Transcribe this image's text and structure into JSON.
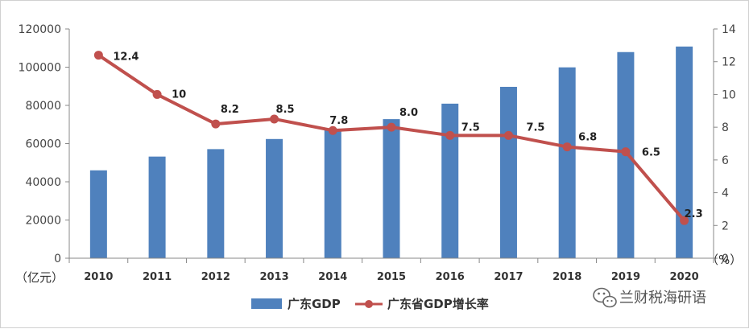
{
  "chart_data": {
    "type": "bar",
    "categories": [
      "2010",
      "2011",
      "2012",
      "2013",
      "2014",
      "2015",
      "2016",
      "2017",
      "2018",
      "2019",
      "2020"
    ],
    "series": [
      {
        "name": "广东GDP",
        "type": "bar",
        "axis": "left",
        "values": [
          46000,
          53200,
          57100,
          62400,
          67800,
          72800,
          80900,
          89700,
          99900,
          107900,
          110800
        ]
      },
      {
        "name": "广东省GDP增长率",
        "type": "line",
        "axis": "right",
        "values": [
          12.4,
          10,
          8.2,
          8.5,
          7.8,
          8.0,
          7.5,
          7.5,
          6.8,
          6.5,
          2.3
        ],
        "labels": [
          "12.4",
          "10",
          "8.2",
          "8.5",
          "7.8",
          "8.0",
          "7.5",
          "7.5",
          "6.8",
          "6.5",
          "2.3"
        ]
      }
    ],
    "left_axis": {
      "unit": "（亿元）",
      "min": 0,
      "max": 120000,
      "ticks": [
        0,
        20000,
        40000,
        60000,
        80000,
        100000,
        120000
      ]
    },
    "right_axis": {
      "unit": "（%）",
      "min": 0,
      "max": 14,
      "ticks": [
        0,
        2,
        4,
        6,
        8,
        10,
        12,
        14
      ]
    },
    "legend_position": "bottom",
    "colors": {
      "bar": "#4f81bd",
      "line": "#c0504d",
      "axis": "#888888"
    }
  },
  "watermark": {
    "icon": "wechat-icon",
    "text": "兰财税海研语"
  }
}
